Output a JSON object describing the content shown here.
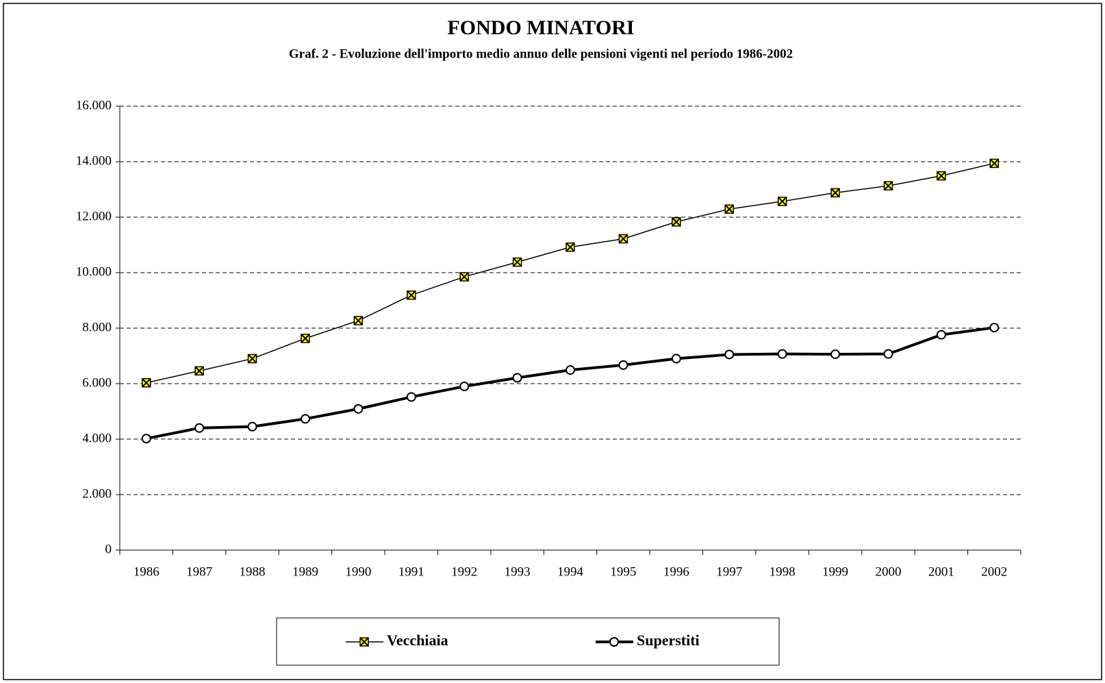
{
  "chart_data": {
    "type": "line",
    "title": "FONDO MINATORI",
    "subtitle": "Graf. 2 - Evoluzione dell'importo medio annuo delle pensioni vigenti nel periodo 1986-2002",
    "categories": [
      "1986",
      "1987",
      "1988",
      "1989",
      "1990",
      "1991",
      "1992",
      "1993",
      "1994",
      "1995",
      "1996",
      "1997",
      "1998",
      "1999",
      "2000",
      "2001",
      "2002"
    ],
    "series": [
      {
        "name": "Vecchiaia",
        "color": "#000000",
        "marker_color": "#ffff00",
        "marker": "square-x",
        "line_width": 1.5,
        "values": [
          6030,
          6460,
          6900,
          7630,
          8270,
          9190,
          9850,
          10380,
          10920,
          11220,
          11830,
          12290,
          12570,
          12880,
          13130,
          13490,
          13940
        ]
      },
      {
        "name": "Superstiti",
        "color": "#000000",
        "marker_color": "#ffffff",
        "marker": "circle",
        "line_width": 4,
        "values": [
          4020,
          4400,
          4450,
          4730,
          5090,
          5520,
          5900,
          6210,
          6490,
          6670,
          6900,
          7050,
          7070,
          7060,
          7070,
          7760,
          8020
        ]
      }
    ],
    "ylim": [
      0,
      16000
    ],
    "yticks": [
      0,
      {
        "value": 2000,
        "label": "2.000"
      },
      {
        "value": 4000,
        "label": "4.000"
      },
      {
        "value": 6000,
        "label": "6.000"
      },
      {
        "value": 8000,
        "label": "8.000"
      },
      {
        "value": 10000,
        "label": "10.000"
      },
      {
        "value": 12000,
        "label": "12.000"
      },
      {
        "value": 14000,
        "label": "14.000"
      },
      {
        "value": 16000,
        "label": "16.000"
      }
    ],
    "grid": true,
    "legend": "bottom"
  }
}
